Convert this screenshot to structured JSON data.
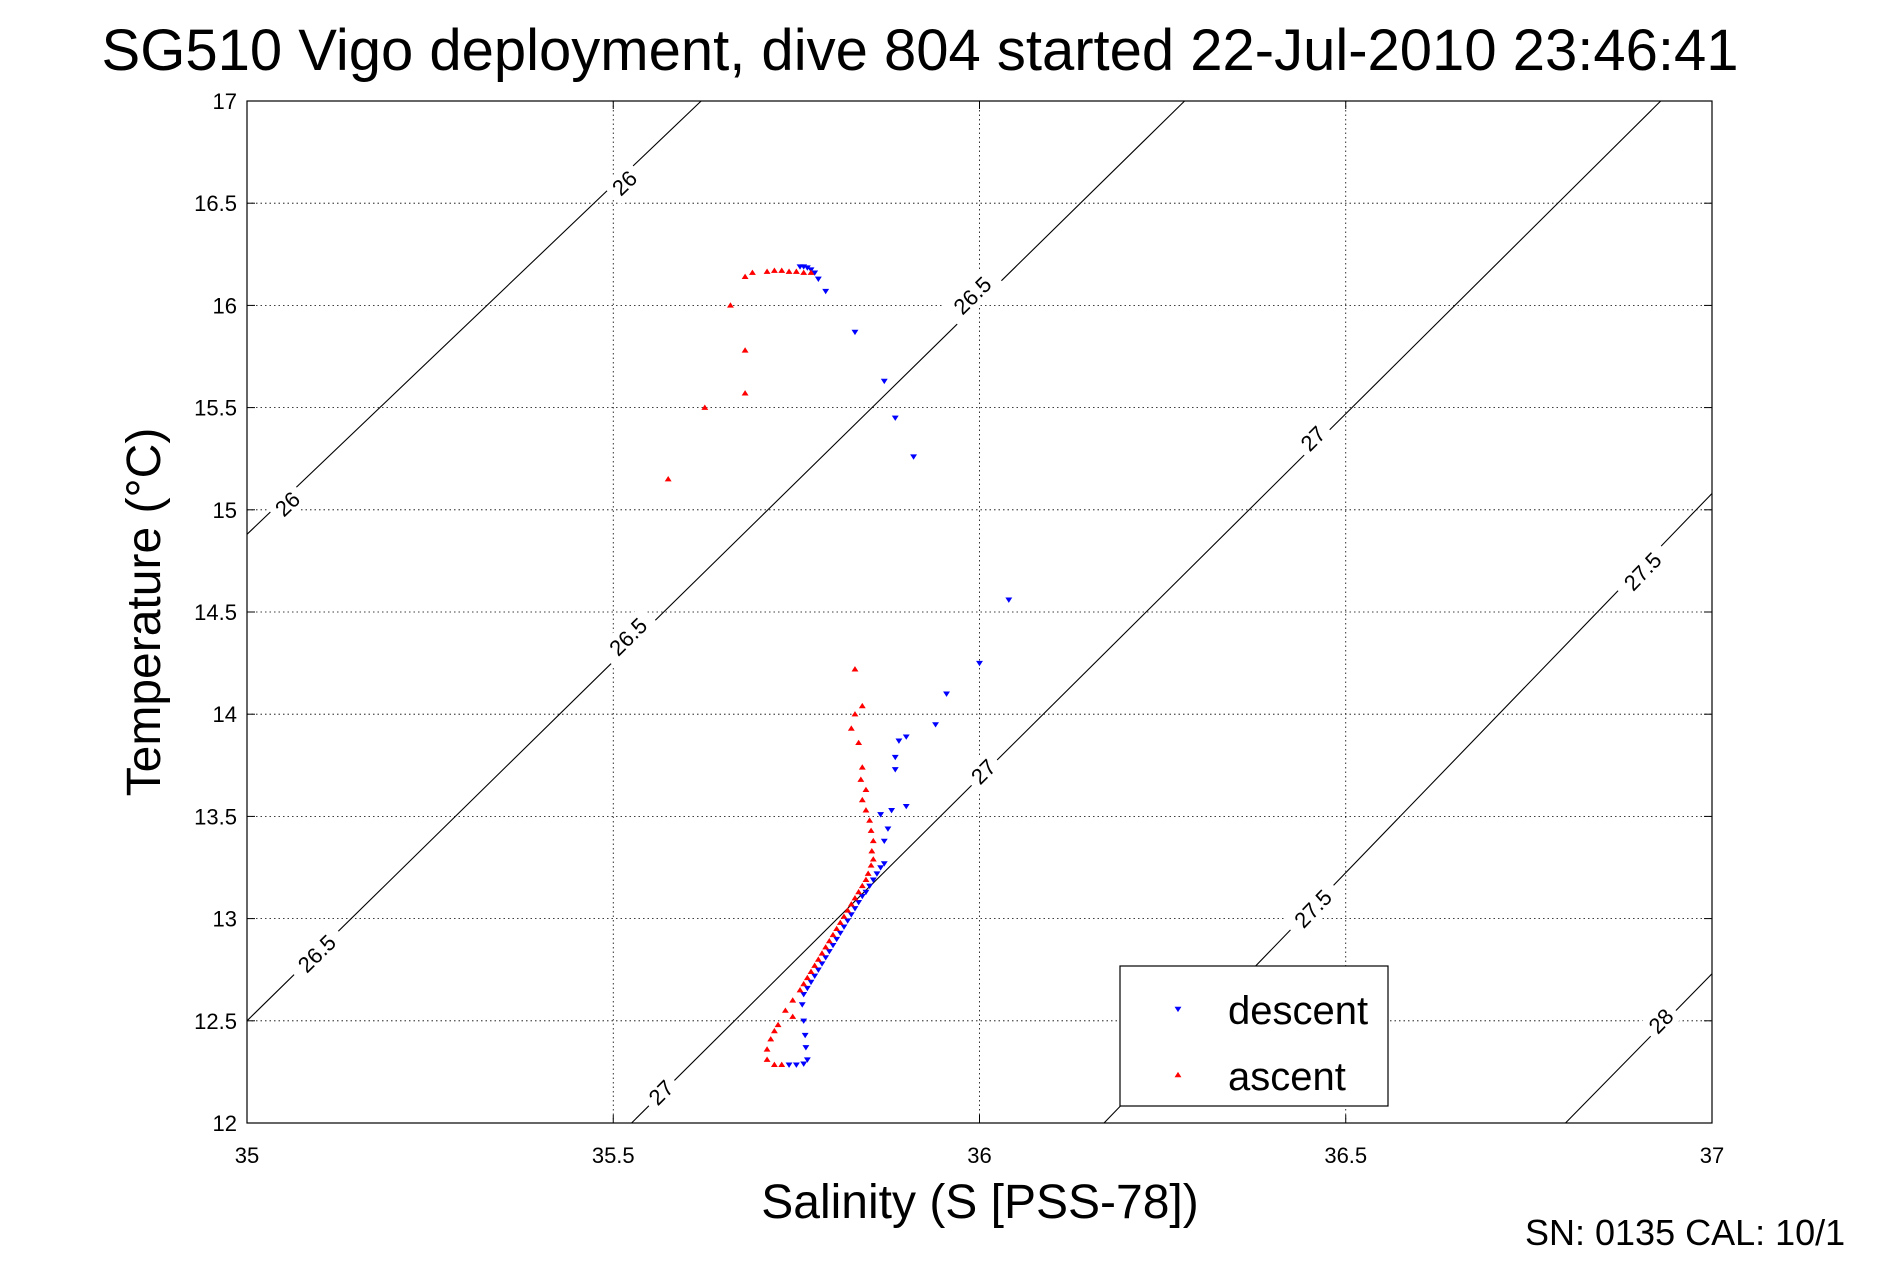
{
  "chart_data": {
    "type": "scatter",
    "title": "SG510 Vigo deployment, dive 804 started 22-Jul-2010 23:46:41",
    "xlabel": "Salinity (S [PSS-78])",
    "ylabel": "Temperature (°C)",
    "xlim": [
      35,
      37
    ],
    "ylim": [
      12,
      17
    ],
    "grid": true,
    "xticks": [
      35,
      35.5,
      36,
      36.5,
      37
    ],
    "xtick_labels": [
      "35",
      "35.5",
      "36",
      "36.5",
      "37"
    ],
    "yticks": [
      12,
      12.5,
      13,
      13.5,
      14,
      14.5,
      15,
      15.5,
      16,
      16.5,
      17
    ],
    "ytick_labels": [
      "12",
      "12.5",
      "13",
      "13.5",
      "14",
      "14.5",
      "15",
      "15.5",
      "16",
      "16.5",
      "17"
    ],
    "legend_position": "bottom-right",
    "series": [
      {
        "name": "descent",
        "color": "#0000ff",
        "marker": "triangle-down",
        "points": [
          [
            35.755,
            16.19
          ],
          [
            35.76,
            16.19
          ],
          [
            35.765,
            16.185
          ],
          [
            35.77,
            16.175
          ],
          [
            35.775,
            16.16
          ],
          [
            35.78,
            16.13
          ],
          [
            35.79,
            16.07
          ],
          [
            35.83,
            15.87
          ],
          [
            35.87,
            15.63
          ],
          [
            35.885,
            15.45
          ],
          [
            35.91,
            15.26
          ],
          [
            36.04,
            14.56
          ],
          [
            36.0,
            14.25
          ],
          [
            35.955,
            14.1
          ],
          [
            35.94,
            13.95
          ],
          [
            35.9,
            13.89
          ],
          [
            35.89,
            13.87
          ],
          [
            35.885,
            13.79
          ],
          [
            35.885,
            13.73
          ],
          [
            35.9,
            13.55
          ],
          [
            35.88,
            13.53
          ],
          [
            35.865,
            13.51
          ],
          [
            35.875,
            13.44
          ],
          [
            35.87,
            13.38
          ],
          [
            35.87,
            13.27
          ],
          [
            35.865,
            13.25
          ],
          [
            35.86,
            13.22
          ],
          [
            35.855,
            13.19
          ],
          [
            35.85,
            13.16
          ],
          [
            35.845,
            13.13
          ],
          [
            35.84,
            13.11
          ],
          [
            35.835,
            13.08
          ],
          [
            35.83,
            13.05
          ],
          [
            35.825,
            13.02
          ],
          [
            35.82,
            12.99
          ],
          [
            35.815,
            12.96
          ],
          [
            35.81,
            12.93
          ],
          [
            35.805,
            12.9
          ],
          [
            35.8,
            12.87
          ],
          [
            35.795,
            12.84
          ],
          [
            35.79,
            12.81
          ],
          [
            35.785,
            12.78
          ],
          [
            35.78,
            12.75
          ],
          [
            35.775,
            12.72
          ],
          [
            35.77,
            12.69
          ],
          [
            35.765,
            12.66
          ],
          [
            35.76,
            12.63
          ],
          [
            35.758,
            12.58
          ],
          [
            35.76,
            12.5
          ],
          [
            35.762,
            12.43
          ],
          [
            35.763,
            12.37
          ],
          [
            35.765,
            12.31
          ],
          [
            35.76,
            12.29
          ],
          [
            35.75,
            12.285
          ],
          [
            35.74,
            12.285
          ]
        ]
      },
      {
        "name": "ascent",
        "color": "#ff0000",
        "marker": "triangle-up",
        "points": [
          [
            35.77,
            16.16
          ],
          [
            35.76,
            16.16
          ],
          [
            35.75,
            16.165
          ],
          [
            35.74,
            16.165
          ],
          [
            35.73,
            16.17
          ],
          [
            35.72,
            16.17
          ],
          [
            35.71,
            16.165
          ],
          [
            35.69,
            16.16
          ],
          [
            35.68,
            16.14
          ],
          [
            35.66,
            16.0
          ],
          [
            35.68,
            15.78
          ],
          [
            35.68,
            15.57
          ],
          [
            35.625,
            15.5
          ],
          [
            35.575,
            15.15
          ],
          [
            35.83,
            14.22
          ],
          [
            35.84,
            14.04
          ],
          [
            35.83,
            14.0
          ],
          [
            35.825,
            13.93
          ],
          [
            35.835,
            13.86
          ],
          [
            35.84,
            13.74
          ],
          [
            35.838,
            13.68
          ],
          [
            35.845,
            13.63
          ],
          [
            35.84,
            13.58
          ],
          [
            35.845,
            13.53
          ],
          [
            35.85,
            13.48
          ],
          [
            35.852,
            13.43
          ],
          [
            35.855,
            13.38
          ],
          [
            35.853,
            13.33
          ],
          [
            35.855,
            13.29
          ],
          [
            35.852,
            13.26
          ],
          [
            35.848,
            13.22
          ],
          [
            35.845,
            13.19
          ],
          [
            35.84,
            13.16
          ],
          [
            35.835,
            13.13
          ],
          [
            35.83,
            13.1
          ],
          [
            35.825,
            13.07
          ],
          [
            35.82,
            13.04
          ],
          [
            35.815,
            13.01
          ],
          [
            35.81,
            12.98
          ],
          [
            35.805,
            12.95
          ],
          [
            35.8,
            12.92
          ],
          [
            35.795,
            12.89
          ],
          [
            35.79,
            12.86
          ],
          [
            35.785,
            12.83
          ],
          [
            35.78,
            12.8
          ],
          [
            35.775,
            12.77
          ],
          [
            35.77,
            12.74
          ],
          [
            35.765,
            12.71
          ],
          [
            35.76,
            12.68
          ],
          [
            35.755,
            12.65
          ],
          [
            35.745,
            12.6
          ],
          [
            35.735,
            12.55
          ],
          [
            35.745,
            12.52
          ],
          [
            35.725,
            12.48
          ],
          [
            35.72,
            12.45
          ],
          [
            35.715,
            12.41
          ],
          [
            35.71,
            12.36
          ],
          [
            35.71,
            12.31
          ],
          [
            35.72,
            12.285
          ],
          [
            35.73,
            12.285
          ]
        ]
      }
    ],
    "density_contours": [
      {
        "label": "26",
        "points": [
          [
            35,
            14.88
          ],
          [
            35.62,
            17
          ]
        ],
        "label_positions": [
          [
            35.055,
            15.03
          ],
          [
            35.515,
            16.6
          ]
        ]
      },
      {
        "label": "26.5",
        "points": [
          [
            35,
            12.5
          ],
          [
            36.28,
            17
          ]
        ],
        "label_positions": [
          [
            35.095,
            12.83
          ],
          [
            35.52,
            14.38
          ],
          [
            35.99,
            16.05
          ]
        ]
      },
      {
        "label": "27",
        "points": [
          [
            35.525,
            12
          ],
          [
            36.93,
            17
          ]
        ],
        "label_positions": [
          [
            35.565,
            12.15
          ],
          [
            36.005,
            13.72
          ],
          [
            36.455,
            15.35
          ]
        ]
      },
      {
        "label": "27.5",
        "points": [
          [
            36.17,
            12
          ],
          [
            37,
            15.08
          ]
        ],
        "label_positions": [
          [
            36.455,
            13.05
          ],
          [
            36.905,
            14.7
          ]
        ]
      },
      {
        "label": "28",
        "points": [
          [
            36.8,
            12
          ],
          [
            37,
            12.73
          ]
        ],
        "label_positions": [
          [
            36.93,
            12.5
          ]
        ]
      }
    ]
  },
  "footer": {
    "sn_cal": "SN: 0135  CAL: 10/1"
  }
}
